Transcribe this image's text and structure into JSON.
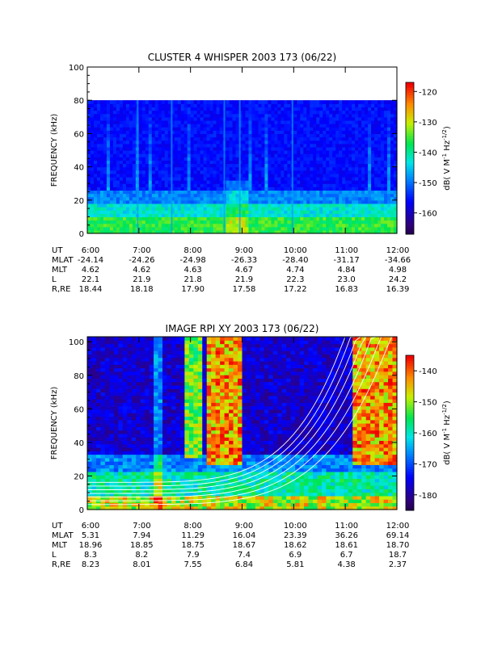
{
  "chart_data": [
    {
      "type": "heatmap",
      "title": "CLUSTER 4 WHISPER 2003 173 (06/22)",
      "ylabel": "FREQUENCY (kHz)",
      "ylim": [
        0,
        100
      ],
      "y_ticks": [
        "0",
        "20",
        "40",
        "60",
        "80",
        "100"
      ],
      "x_ticks": [
        "6:00",
        "7:00",
        "8:00",
        "9:00",
        "10:00",
        "11:00",
        "12:00"
      ],
      "data_max_frequency_khz": 80,
      "colorbar": {
        "label_parts": [
          "dB( V M",
          "-1",
          " Hz",
          "-1/2",
          ")"
        ],
        "range": [
          -167,
          -117
        ],
        "ticks": [
          "-120",
          "-130",
          "-140",
          "-150",
          "-160"
        ]
      },
      "ephemeris": [
        {
          "label": "UT",
          "values": [
            "6:00",
            "7:00",
            "8:00",
            "9:00",
            "10:00",
            "11:00",
            "12:00"
          ]
        },
        {
          "label": "MLAT",
          "values": [
            "-24.14",
            "-24.26",
            "-24.98",
            "-26.33",
            "-28.40",
            "-31.17",
            "-34.66"
          ]
        },
        {
          "label": "MLT",
          "values": [
            "4.62",
            "4.62",
            "4.63",
            "4.67",
            "4.74",
            "4.84",
            "4.98"
          ]
        },
        {
          "label": "L",
          "values": [
            "22.1",
            "21.9",
            "21.8",
            "21.9",
            "22.3",
            "23.0",
            "24.2"
          ]
        },
        {
          "label": "R,RE",
          "values": [
            "18.44",
            "18.18",
            "17.90",
            "17.58",
            "17.22",
            "16.83",
            "16.39"
          ]
        }
      ]
    },
    {
      "type": "heatmap",
      "title": "IMAGE RPI XY 2003 173 (06/22)",
      "ylabel": "FREQUENCY (kHz)",
      "ylim": [
        0,
        103
      ],
      "y_ticks": [
        "0",
        "20",
        "40",
        "60",
        "80",
        "100"
      ],
      "x_ticks": [
        "6:00",
        "7:00",
        "8:00",
        "9:00",
        "10:00",
        "11:00",
        "12:00"
      ],
      "colorbar": {
        "label_parts": [
          "dB( V M",
          "-1",
          " Hz",
          "-1/2",
          ")"
        ],
        "range": [
          -185,
          -135
        ],
        "ticks": [
          "-140",
          "-150",
          "-160",
          "-170",
          "-180"
        ]
      },
      "ephemeris": [
        {
          "label": "UT",
          "values": [
            "6:00",
            "7:00",
            "8:00",
            "9:00",
            "10:00",
            "11:00",
            "12:00"
          ]
        },
        {
          "label": "MLAT",
          "values": [
            "5.31",
            "7.94",
            "11.29",
            "16.04",
            "23.39",
            "36.26",
            "69.14"
          ]
        },
        {
          "label": "MLT",
          "values": [
            "18.96",
            "18.85",
            "18.75",
            "18.67",
            "18.62",
            "18.61",
            "18.70"
          ]
        },
        {
          "label": "L",
          "values": [
            "8.3",
            "8.2",
            "7.9",
            "7.4",
            "6.9",
            "6.7",
            "18.7"
          ]
        },
        {
          "label": "R,RE",
          "values": [
            "8.23",
            "8.01",
            "7.55",
            "6.84",
            "5.81",
            "4.38",
            "2.37"
          ]
        }
      ]
    }
  ],
  "colors": {
    "top_background": "#30007a",
    "bottom_background": "#23005a",
    "overlay_curve": "#ffffff"
  }
}
